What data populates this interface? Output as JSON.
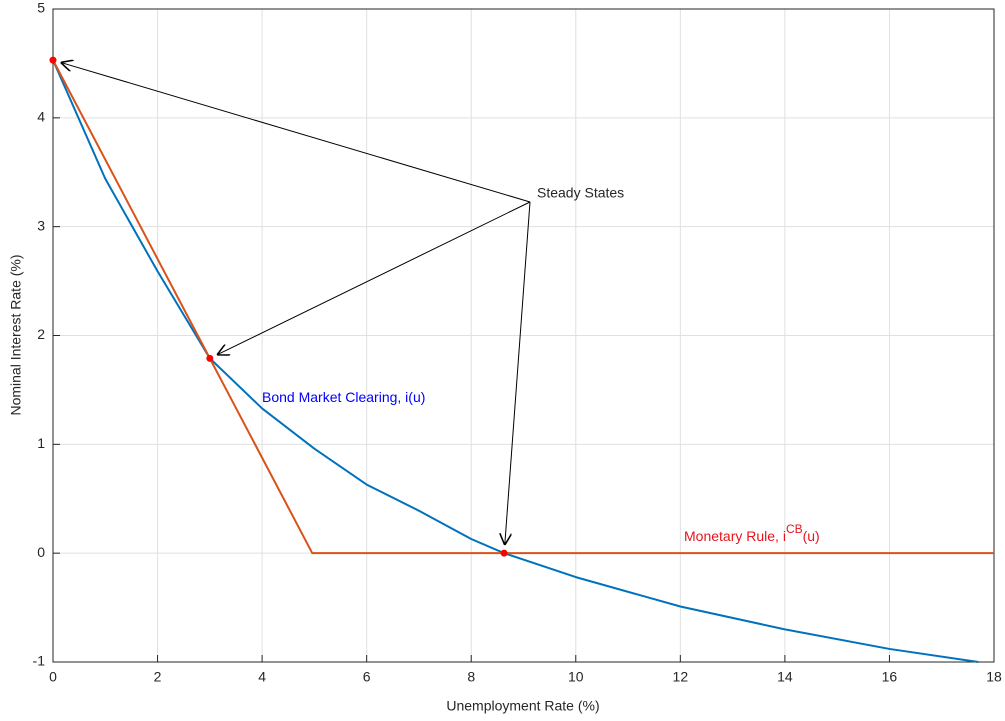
{
  "chart_data": {
    "type": "line",
    "x_label": "Unemployment Rate (%)",
    "y_label": "Nominal Interest Rate (%)",
    "xlim": [
      0,
      18
    ],
    "xticks": [
      0,
      2,
      4,
      6,
      8,
      10,
      12,
      14,
      16,
      18
    ],
    "ylim": [
      -1,
      5
    ],
    "yticks": [
      -1,
      0,
      1,
      2,
      3,
      4,
      5
    ],
    "grid": true,
    "series": [
      {
        "color": "#0072bd",
        "x": [
          0,
          1,
          2,
          3,
          4,
          5,
          6,
          7,
          8,
          8.63,
          10,
          12,
          14,
          16,
          17.7
        ],
        "values": [
          4.53,
          3.44,
          2.59,
          1.79,
          1.33,
          0.96,
          0.63,
          0.39,
          0.13,
          0,
          -0.22,
          -0.49,
          -0.7,
          -0.88,
          -1
        ]
      },
      {
        "color": "#d95319",
        "x": [
          0,
          3,
          4.96,
          18
        ],
        "values": [
          4.53,
          1.79,
          0,
          0
        ]
      }
    ],
    "steady_states": {
      "color": "#ff0000",
      "x": [
        0,
        3,
        8.63
      ],
      "values": [
        4.53,
        1.79,
        0
      ],
      "label": "Steady States"
    },
    "annotations": [
      {
        "parts": [
          "Bond Market Clearing, i(u)"
        ],
        "color": "#0000ff"
      },
      {
        "parts": [
          "Monetary Rule, i",
          "CB",
          "(u)"
        ],
        "color": "#e8141c"
      }
    ]
  }
}
